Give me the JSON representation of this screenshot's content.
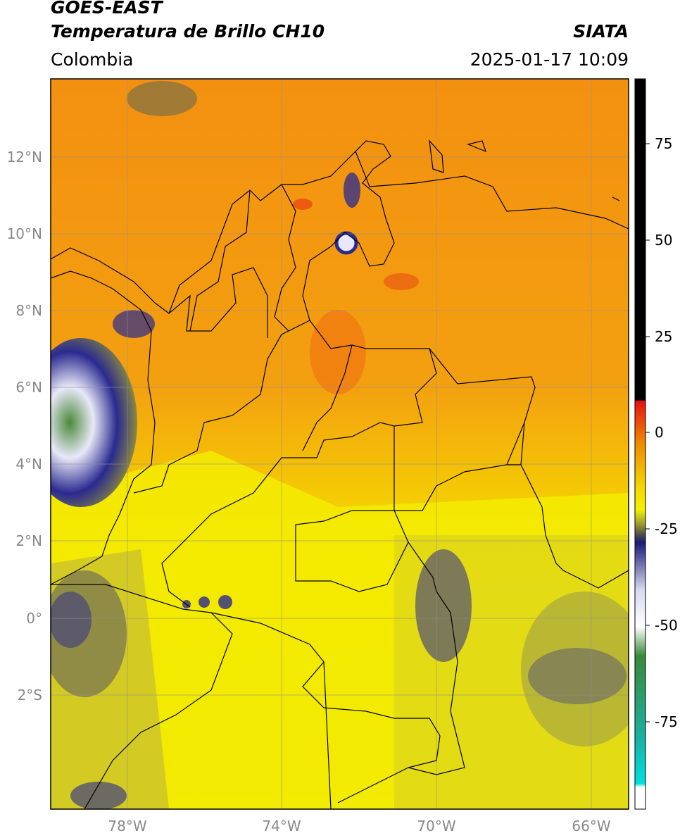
{
  "header": {
    "satellite": "GOES-EAST",
    "product": "Temperatura de Brillo CH10",
    "source": "SIATA",
    "region": "Colombia",
    "datetime": "2025-01-17 10:09"
  },
  "axes": {
    "lat_labels": [
      "12°N",
      "10°N",
      "8°N",
      "6°N",
      "4°N",
      "2°N",
      "0°",
      "2°S"
    ],
    "lon_labels": [
      "78°W",
      "74°W",
      "70°W",
      "66°W"
    ]
  },
  "colorbar": {
    "ticks": [
      "75",
      "50",
      "25",
      "0",
      "-25",
      "-50",
      "-75"
    ],
    "colors": {
      "black": "#000000",
      "red": "#e83010",
      "orange": "#f08c00",
      "yellow": "#f5f000",
      "olive": "#8a8a30",
      "navy": "#1a1a7a",
      "white": "#ffffff",
      "green": "#3a8a3a",
      "teal": "#1ab0a0",
      "cyan": "#00e0e0"
    }
  },
  "map_colors": {
    "land_orange": "#f39a10",
    "land_yellow": "#f3e60a",
    "olive": "#b8b030",
    "cloud_navy": "#2a2a90",
    "cloud_white": "#e8e8f8",
    "cloud_green": "#4a8a3a",
    "border": "#000000"
  }
}
